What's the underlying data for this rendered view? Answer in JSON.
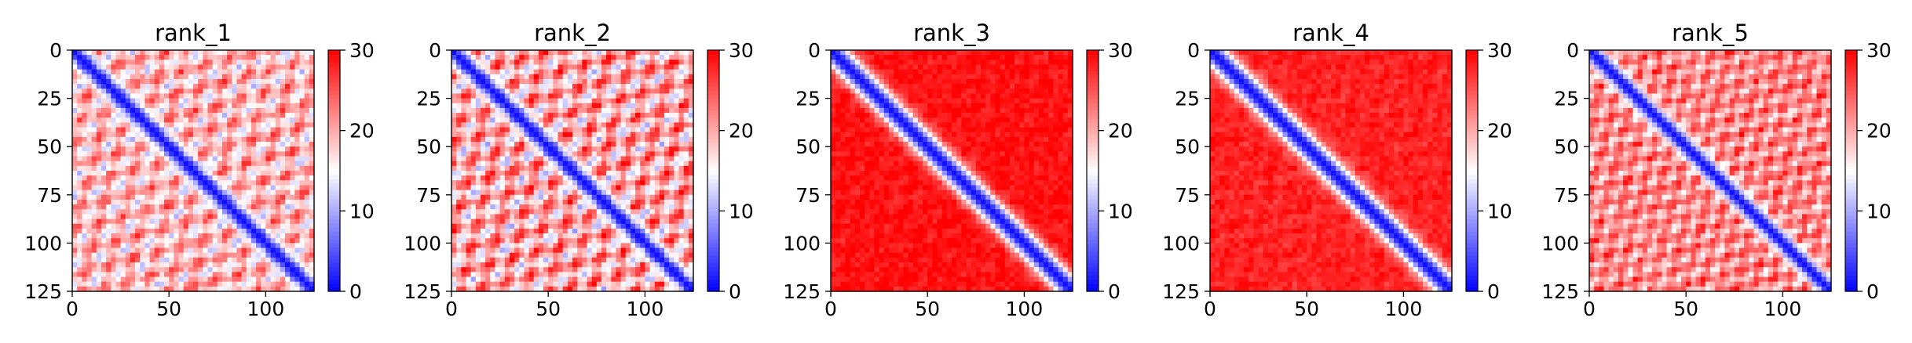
{
  "figure": {
    "colormap": "bwr",
    "colormap_stops": [
      "#0000ff",
      "#ffffff",
      "#ff0000"
    ],
    "panel_count": 5
  },
  "chart_data": [
    {
      "type": "heatmap",
      "title": "rank_1",
      "xlim": [
        0,
        125
      ],
      "ylim": [
        125,
        0
      ],
      "xticks": [
        0,
        50,
        100
      ],
      "yticks": [
        0,
        25,
        50,
        75,
        100,
        125
      ],
      "x_tick_labels": [
        "0",
        "50",
        "100"
      ],
      "y_tick_labels": [
        "0",
        "25",
        "50",
        "75",
        "100",
        "125"
      ],
      "colorbar": {
        "min": 0,
        "max": 30,
        "ticks": [
          0,
          10,
          20,
          30
        ],
        "tick_labels": [
          "0",
          "10",
          "20",
          "30"
        ]
      },
      "pattern": {
        "off_diagonal_level": 19,
        "diag_width": 4.5,
        "stripe_period": 18,
        "stripe_amplitude": 7,
        "noise": 2.5
      }
    },
    {
      "type": "heatmap",
      "title": "rank_2",
      "xlim": [
        0,
        125
      ],
      "ylim": [
        125,
        0
      ],
      "xticks": [
        0,
        50,
        100
      ],
      "yticks": [
        0,
        25,
        50,
        75,
        100,
        125
      ],
      "x_tick_labels": [
        "0",
        "50",
        "100"
      ],
      "y_tick_labels": [
        "0",
        "25",
        "50",
        "75",
        "100",
        "125"
      ],
      "colorbar": {
        "min": 0,
        "max": 30,
        "ticks": [
          0,
          10,
          20,
          30
        ],
        "tick_labels": [
          "0",
          "10",
          "20",
          "30"
        ]
      },
      "pattern": {
        "off_diagonal_level": 20,
        "diag_width": 4.5,
        "stripe_period": 18,
        "stripe_amplitude": 9,
        "noise": 2.5
      }
    },
    {
      "type": "heatmap",
      "title": "rank_3",
      "xlim": [
        0,
        125
      ],
      "ylim": [
        125,
        0
      ],
      "xticks": [
        0,
        50,
        100
      ],
      "yticks": [
        0,
        25,
        50,
        75,
        100,
        125
      ],
      "x_tick_labels": [
        "0",
        "50",
        "100"
      ],
      "y_tick_labels": [
        "0",
        "25",
        "50",
        "75",
        "100",
        "125"
      ],
      "colorbar": {
        "min": 0,
        "max": 30,
        "ticks": [
          0,
          10,
          20,
          30
        ],
        "tick_labels": [
          "0",
          "10",
          "20",
          "30"
        ]
      },
      "pattern": {
        "off_diagonal_level": 29,
        "diag_width": 6,
        "stripe_period": 18,
        "stripe_amplitude": 1,
        "noise": 1.5
      }
    },
    {
      "type": "heatmap",
      "title": "rank_4",
      "xlim": [
        0,
        125
      ],
      "ylim": [
        125,
        0
      ],
      "xticks": [
        0,
        50,
        100
      ],
      "yticks": [
        0,
        25,
        50,
        75,
        100,
        125
      ],
      "x_tick_labels": [
        "0",
        "50",
        "100"
      ],
      "y_tick_labels": [
        "0",
        "25",
        "50",
        "75",
        "100",
        "125"
      ],
      "colorbar": {
        "min": 0,
        "max": 30,
        "ticks": [
          0,
          10,
          20,
          30
        ],
        "tick_labels": [
          "0",
          "10",
          "20",
          "30"
        ]
      },
      "pattern": {
        "off_diagonal_level": 28,
        "diag_width": 6,
        "stripe_period": 18,
        "stripe_amplitude": 1,
        "noise": 1.5
      }
    },
    {
      "type": "heatmap",
      "title": "rank_5",
      "xlim": [
        0,
        125
      ],
      "ylim": [
        125,
        0
      ],
      "xticks": [
        0,
        50,
        100
      ],
      "yticks": [
        0,
        25,
        50,
        75,
        100,
        125
      ],
      "x_tick_labels": [
        "0",
        "50",
        "100"
      ],
      "y_tick_labels": [
        "0",
        "25",
        "50",
        "75",
        "100",
        "125"
      ],
      "colorbar": {
        "min": 0,
        "max": 30,
        "ticks": [
          0,
          10,
          20,
          30
        ],
        "tick_labels": [
          "0",
          "10",
          "20",
          "30"
        ]
      },
      "pattern": {
        "off_diagonal_level": 22,
        "diag_width": 4.5,
        "stripe_period": 14,
        "stripe_amplitude": 6,
        "noise": 2.5
      }
    }
  ]
}
